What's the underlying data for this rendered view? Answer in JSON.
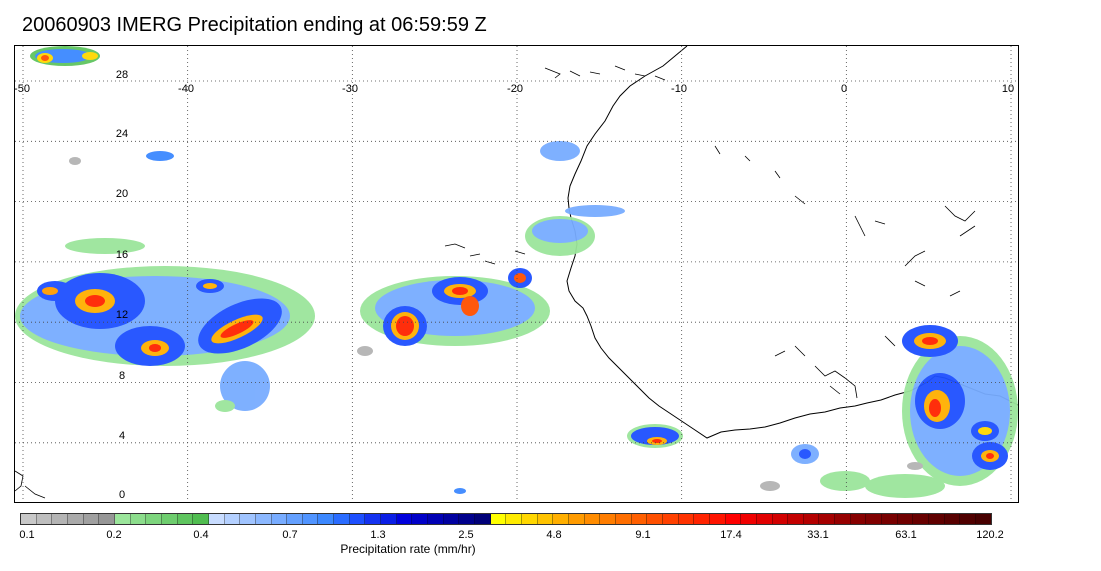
{
  "title": "20060903 IMERG Precipitation ending at 06:59:59 Z",
  "map": {
    "lon_labels": [
      "-50",
      "-40",
      "-30",
      "-20",
      "-10",
      "0",
      "10"
    ],
    "lat_labels": [
      "28",
      "24",
      "20",
      "16",
      "12",
      "8",
      "4",
      "0"
    ],
    "grid_style": "dotted",
    "coastline_color": "#000000"
  },
  "colorbar": {
    "title": "Precipitation rate (mm/hr)",
    "tick_labels": [
      "0.1",
      "0.2",
      "0.4",
      "0.7",
      "1.3",
      "2.5",
      "4.8",
      "9.1",
      "17.4",
      "33.1",
      "63.1",
      "120.2"
    ],
    "colors": [
      "#c8c8c8",
      "#bebebe",
      "#b4b4b4",
      "#aaaaaa",
      "#a0a0a0",
      "#969696",
      "#9be59b",
      "#8cdd8c",
      "#7dd57d",
      "#6ecd6e",
      "#5fc55f",
      "#50bd50",
      "#c8dcff",
      "#b4d0ff",
      "#a0c4ff",
      "#8cb8ff",
      "#78acff",
      "#64a0ff",
      "#5094ff",
      "#3c88ff",
      "#2a6cff",
      "#1e50ff",
      "#1432f0",
      "#0a1ee6",
      "#0000dc",
      "#0000c8",
      "#0000b4",
      "#0000a0",
      "#00008c",
      "#000078",
      "#ffff00",
      "#ffeb00",
      "#ffd700",
      "#ffc300",
      "#ffaf00",
      "#ff9b00",
      "#ff8c00",
      "#ff7d00",
      "#ff6e00",
      "#ff5f00",
      "#ff5000",
      "#ff4100",
      "#ff3200",
      "#ff2300",
      "#ff1400",
      "#ff0000",
      "#f00000",
      "#e10000",
      "#d20000",
      "#c30000",
      "#b40000",
      "#a50000",
      "#960000",
      "#870000",
      "#800000",
      "#780000",
      "#700000",
      "#680000",
      "#600000",
      "#580000",
      "#500000",
      "#480000"
    ]
  }
}
